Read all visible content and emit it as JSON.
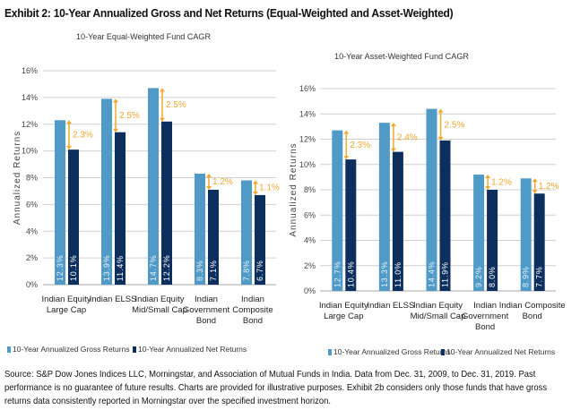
{
  "title": "Exhibit 2: 10-Year Annualized Gross and Net Returns (Equal-Weighted and Asset-Weighted)",
  "source": "Source: S&P Dow Jones Indices LLC, Morningstar, and Association of Mutual Funds in India. Data from Dec. 31, 2009, to Dec. 31, 2019. Past performance is no guarantee of future results. Charts are provided for illustrative purposes. Exhibit 2b considers only those funds that have gross returns data consistently reported in Morningstar over the specified investment horizon.",
  "colors": {
    "gross": "#4f9ac6",
    "net": "#0d2f5e",
    "gap_arrow": "#f0a830",
    "grid": "#d0d0d0"
  },
  "chart_data": [
    {
      "type": "bar",
      "title": "10-Year Equal-Weighted Fund CAGR",
      "ylabel": "Annualized Returns",
      "ylim": [
        0,
        16
      ],
      "yticks": [
        "0%",
        "2%",
        "4%",
        "6%",
        "8%",
        "10%",
        "12%",
        "14%",
        "16%"
      ],
      "grid": true,
      "legend": "bottom",
      "categories": [
        [
          "Indian Equity",
          "Large Cap"
        ],
        [
          "Indian ELSS"
        ],
        [
          "Indian Equity",
          "Mid/Small Cap"
        ],
        [
          "Indian",
          "Government",
          "Bond"
        ],
        [
          "Indian",
          "Composite",
          "Bond"
        ]
      ],
      "series": [
        {
          "name": "10-Year Annualized Gross Returns",
          "values": [
            12.3,
            13.9,
            14.7,
            8.3,
            7.8
          ],
          "labels": [
            "12.3%",
            "13.9%",
            "14.7%",
            "8.3%",
            "7.8%"
          ]
        },
        {
          "name": "10-Year Annualized Net Returns",
          "values": [
            10.1,
            11.4,
            12.2,
            7.1,
            6.7
          ],
          "labels": [
            "10.1%",
            "11.4%",
            "12.2%",
            "7.1%",
            "6.7%"
          ]
        }
      ],
      "gaps": [
        "2.3%",
        "2.5%",
        "2.5%",
        "1.2%",
        "1.1%"
      ]
    },
    {
      "type": "bar",
      "title": "10-Year Asset-Weighted Fund CAGR",
      "ylabel": "Annualized Returns",
      "ylim": [
        0,
        16
      ],
      "yticks": [
        "0%",
        "2%",
        "4%",
        "6%",
        "8%",
        "10%",
        "12%",
        "14%",
        "16%"
      ],
      "grid": true,
      "legend": "bottom",
      "categories": [
        [
          "Indian Equity",
          "Large Cap"
        ],
        [
          "Indian ELSS"
        ],
        [
          "Indian Equity",
          "Mid/Small Cap"
        ],
        [
          "Indian",
          "Government",
          "Bond"
        ],
        [
          "Indian Composite",
          "Bond"
        ]
      ],
      "series": [
        {
          "name": "10-Year Annualized Gross Returns",
          "values": [
            12.7,
            13.3,
            14.4,
            9.2,
            8.9
          ],
          "labels": [
            "12.7%",
            "13.3%",
            "14.4%",
            "9.2%",
            "8.9%"
          ]
        },
        {
          "name": "10-Year Annualized Net Returns",
          "values": [
            10.4,
            11.0,
            11.9,
            8.0,
            7.7
          ],
          "labels": [
            "10.4%",
            "11.0%",
            "11.9%",
            "8.0%",
            "7.7%"
          ]
        }
      ],
      "gaps": [
        "2.3%",
        "2.4%",
        "2.5%",
        "1.2%",
        "1.2%"
      ]
    }
  ]
}
